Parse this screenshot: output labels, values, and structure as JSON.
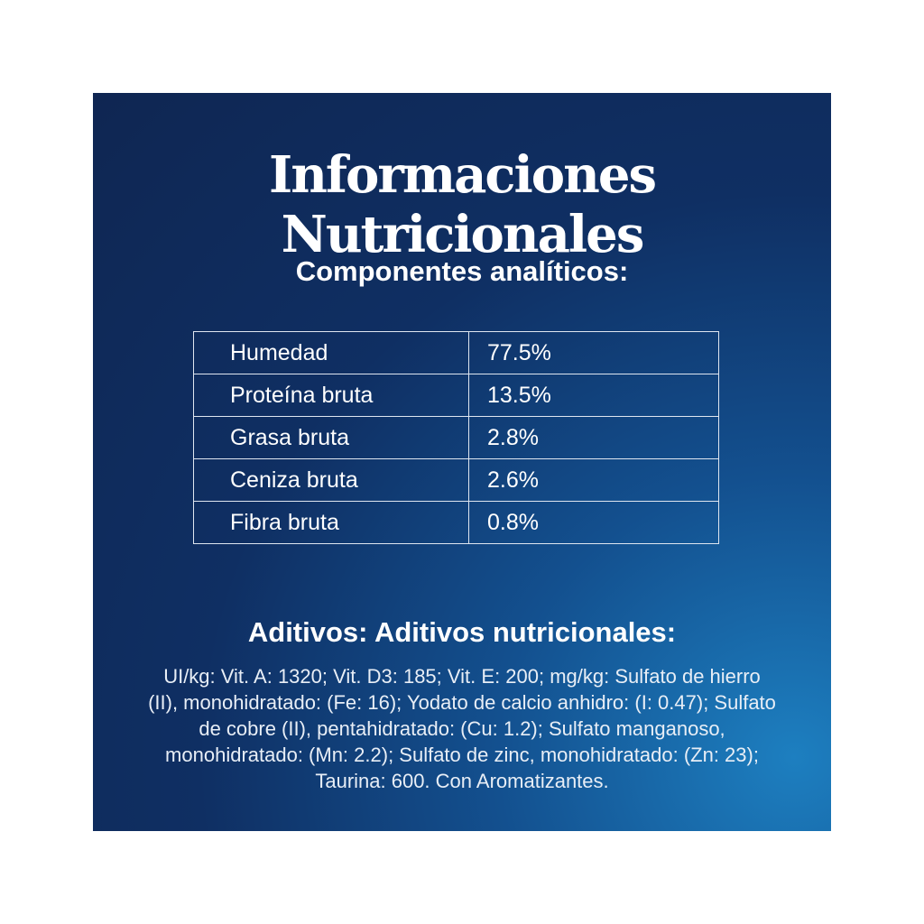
{
  "header": {
    "title": "Informaciones Nutricionales"
  },
  "analytic": {
    "title": "Componentes analíticos:",
    "table": {
      "rows": [
        [
          "Humedad",
          "77.5%"
        ],
        [
          "Proteína bruta",
          "13.5%"
        ],
        [
          "Grasa bruta",
          "2.8%"
        ],
        [
          "Ceniza bruta",
          "2.6%"
        ],
        [
          "Fibra bruta",
          "0.8%"
        ]
      ]
    }
  },
  "additives": {
    "title": "Aditivos: Aditivos nutricionales:",
    "text": "UI/kg: Vit. A: 1320; Vit. D3: 185; Vit. E: 200; mg/kg: Sulfato de hierro (II), monohidratado: (Fe: 16); Yodato de calcio anhidro: (I: 0.47); Sulfato de cobre (II), pentahidratado: (Cu: 1.2); Sulfato manganoso, monohidratado: (Mn: 2.2); Sulfato de zinc, monohidratado: (Zn: 23); Taurina: 600. Con Aromatizantes."
  }
}
